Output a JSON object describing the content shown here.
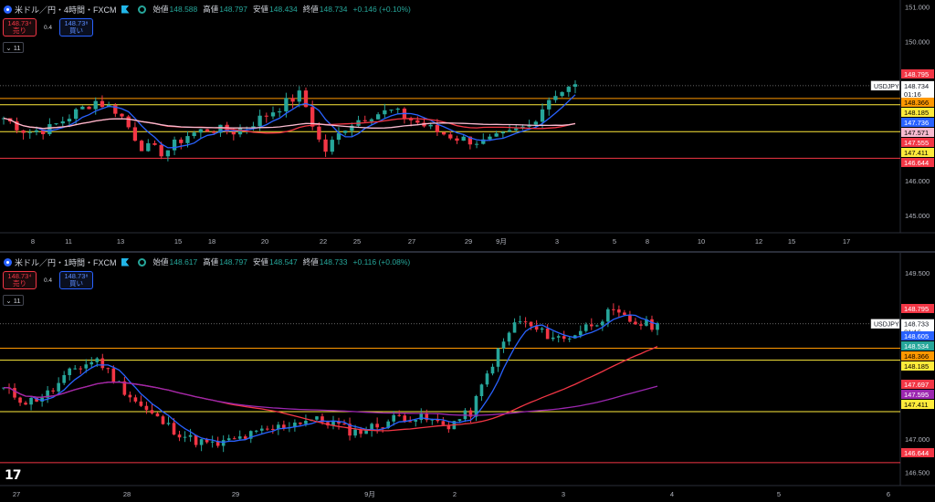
{
  "top": {
    "title": "米ドル／円・4時間・FXCM",
    "open_label": "始値",
    "open": "148.588",
    "high_label": "高値",
    "high": "148.797",
    "low_label": "安値",
    "low": "148.434",
    "close_label": "終値",
    "close": "148.734",
    "change": "+0.146 (+0.10%)",
    "sell_price": "148.73⁴",
    "sell_label": "売り",
    "spread": "0.4",
    "buy_price": "148.73⁸",
    "buy_label": "買い",
    "indicator_count": "11",
    "symbol_tag": "USDJPY",
    "countdown": "01:16",
    "axis_ticks": [
      "151.000",
      "150.000",
      "146.000",
      "145.000"
    ],
    "price_tags": [
      {
        "text": "148.795",
        "bg": "#f23645",
        "fg": "#ffffff"
      },
      {
        "text": "148.366",
        "bg": "#ff9800",
        "fg": "#000000"
      },
      {
        "text": "148.185",
        "bg": "#ffeb3b",
        "fg": "#000000"
      },
      {
        "text": "147.736",
        "bg": "#2962ff",
        "fg": "#ffffff"
      },
      {
        "text": "147.571",
        "bg": "#f8bbd0",
        "fg": "#000000"
      },
      {
        "text": "147.555",
        "bg": "#f23645",
        "fg": "#ffffff"
      },
      {
        "text": "147.411",
        "bg": "#ffeb3b",
        "fg": "#000000"
      },
      {
        "text": "146.644",
        "bg": "#f23645",
        "fg": "#ffffff"
      }
    ],
    "current_price": "148.734",
    "x_ticks": [
      "8",
      "11",
      "13",
      "15",
      "18",
      "20",
      "22",
      "25",
      "27",
      "29",
      "9月",
      "3",
      "5",
      "8",
      "10",
      "12",
      "15",
      "17"
    ]
  },
  "bottom": {
    "title": "米ドル／円・1時間・FXCM",
    "open_label": "始値",
    "open": "148.617",
    "high_label": "高値",
    "high": "148.797",
    "low_label": "安値",
    "low": "148.547",
    "close_label": "終値",
    "close": "148.733",
    "change": "+0.116 (+0.08%)",
    "sell_price": "148.73⁴",
    "sell_label": "売り",
    "spread": "0.4",
    "buy_price": "148.73⁸",
    "buy_label": "買い",
    "indicator_count": "11",
    "symbol_tag": "USDJPY",
    "countdown": "01:16",
    "axis_ticks": [
      "149.500",
      "149.000",
      "147.000",
      "146.500"
    ],
    "price_tags": [
      {
        "text": "148.795",
        "bg": "#f23645",
        "fg": "#ffffff"
      },
      {
        "text": "148.605",
        "bg": "#2962ff",
        "fg": "#ffffff"
      },
      {
        "text": "148.534",
        "bg": "#26a69a",
        "fg": "#ffffff"
      },
      {
        "text": "148.366",
        "bg": "#ff9800",
        "fg": "#000000"
      },
      {
        "text": "148.185",
        "bg": "#ffeb3b",
        "fg": "#000000"
      },
      {
        "text": "147.697",
        "bg": "#f23645",
        "fg": "#ffffff"
      },
      {
        "text": "147.595",
        "bg": "#9c27b0",
        "fg": "#ffffff"
      },
      {
        "text": "147.411",
        "bg": "#ffeb3b",
        "fg": "#000000"
      },
      {
        "text": "146.644",
        "bg": "#f23645",
        "fg": "#ffffff"
      }
    ],
    "current_price": "148.733",
    "x_ticks": [
      "27",
      "28",
      "29",
      "9月",
      "2",
      "3",
      "4",
      "5",
      "6"
    ]
  },
  "chart_data": [
    {
      "type": "candlestick",
      "title": "米ドル／円・4時間・FXCM",
      "ylim": [
        144.5,
        151.2
      ],
      "horizontal_levels": [
        148.366,
        148.185,
        147.411,
        146.644
      ],
      "moving_averages": [
        {
          "color": "#2962ff",
          "last": 147.736
        },
        {
          "color": "#f23645",
          "last": 147.555
        },
        {
          "color": "#f8bbd0",
          "last": 147.571
        }
      ],
      "x_tick_labels": [
        "8",
        "11",
        "13",
        "15",
        "18",
        "20",
        "22",
        "25",
        "27",
        "29",
        "9月",
        "3",
        "5",
        "8",
        "10",
        "12",
        "15",
        "17"
      ]
    },
    {
      "type": "candlestick",
      "title": "米ドル／円・1時間・FXCM",
      "ylim": [
        146.3,
        149.8
      ],
      "horizontal_levels": [
        148.366,
        148.185,
        147.411,
        146.644
      ],
      "moving_averages": [
        {
          "color": "#2962ff",
          "last": 148.605
        },
        {
          "color": "#f23645",
          "last": 147.697
        },
        {
          "color": "#9c27b0",
          "last": 147.595
        }
      ],
      "x_tick_labels": [
        "27",
        "28",
        "29",
        "9月",
        "2",
        "3",
        "4",
        "5",
        "6"
      ]
    }
  ]
}
